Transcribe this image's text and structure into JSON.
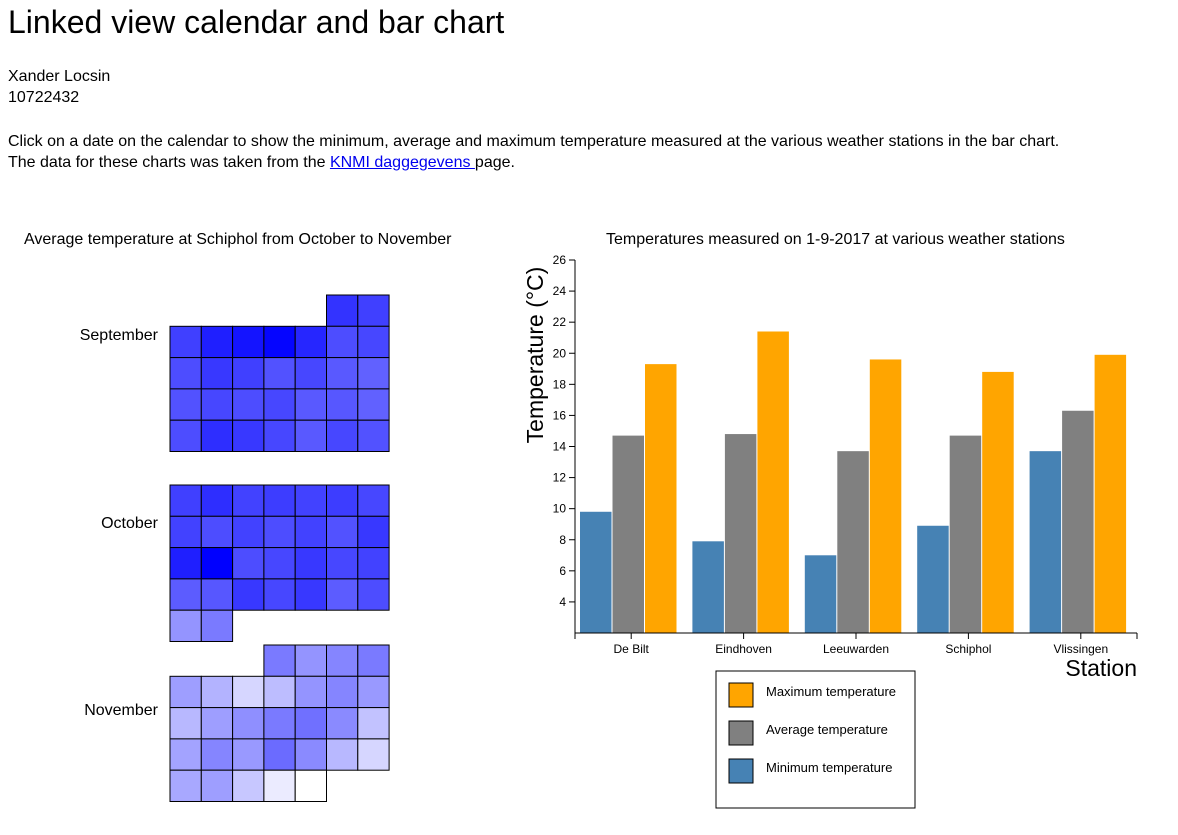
{
  "header": {
    "title": "Linked view calendar and bar chart",
    "author": "Xander Locsin",
    "student_id": "10722432",
    "intro_line1": "Click on a date on the calendar to show the minimum, average and maximum temperature measured at the various weather stations in the bar chart.",
    "intro_line2_before": "The data for these charts was taken from the ",
    "intro_link": "KNMI daggegevens ",
    "intro_line2_after": "page."
  },
  "calendar": {
    "title": "Average temperature at Schiphol from October to November",
    "months": [
      "September",
      "October",
      "November"
    ]
  },
  "colors": {
    "maximum": "#ffa500",
    "average": "#808080",
    "minimum": "#4682b4"
  },
  "chart_data": [
    {
      "type": "heatmap",
      "title": "Average temperature at Schiphol from October to November",
      "color_scale": [
        "#ffffff",
        "#0000ff"
      ],
      "months": [
        {
          "name": "September",
          "start_weekday": 5,
          "intensity": [
            0.8,
            0.75,
            0.75,
            0.88,
            0.92,
            0.98,
            0.85,
            0.7,
            0.72,
            0.7,
            0.78,
            0.75,
            0.68,
            0.72,
            0.65,
            0.62,
            0.68,
            0.72,
            0.7,
            0.72,
            0.65,
            0.66,
            0.62,
            0.7,
            0.82,
            0.78,
            0.72,
            0.65,
            0.72,
            0.68
          ]
        },
        {
          "name": "October",
          "start_weekday": 0,
          "intensity": [
            0.75,
            0.82,
            0.74,
            0.76,
            0.74,
            0.76,
            0.72,
            0.74,
            0.7,
            0.74,
            0.7,
            0.74,
            0.68,
            0.78,
            0.88,
            1.0,
            0.7,
            0.72,
            0.78,
            0.72,
            0.74,
            0.64,
            0.66,
            0.78,
            0.72,
            0.78,
            0.64,
            0.7,
            0.42,
            0.52
          ]
        },
        {
          "name": "November",
          "start_weekday": 3,
          "intensity": [
            0.52,
            0.42,
            0.48,
            0.52,
            0.38,
            0.3,
            0.16,
            0.26,
            0.42,
            0.48,
            0.4,
            0.28,
            0.38,
            0.44,
            0.52,
            0.56,
            0.46,
            0.24,
            0.36,
            0.48,
            0.4,
            0.58,
            0.46,
            0.28,
            0.16,
            0.34,
            0.38,
            0.22,
            0.08,
            0.0
          ]
        }
      ]
    },
    {
      "type": "bar",
      "title": "Temperatures measured on 1-9-2017 at various weather stations",
      "xlabel": "Station",
      "ylabel": "Temperature (°C)",
      "categories": [
        "De Bilt",
        "Eindhoven",
        "Leeuwarden",
        "Schiphol",
        "Vlissingen"
      ],
      "series": [
        {
          "name": "Minimum temperature",
          "values": [
            9.8,
            7.9,
            7.0,
            8.9,
            13.7
          ]
        },
        {
          "name": "Average temperature",
          "values": [
            14.7,
            14.8,
            13.7,
            14.7,
            16.3
          ]
        },
        {
          "name": "Maximum temperature",
          "values": [
            19.3,
            21.4,
            19.6,
            18.8,
            19.9
          ]
        }
      ],
      "ylim": [
        2,
        26
      ],
      "yticks": [
        4,
        6,
        8,
        10,
        12,
        14,
        16,
        18,
        20,
        22,
        24,
        26
      ],
      "legend": [
        "Maximum temperature",
        "Average temperature",
        "Minimum temperature"
      ],
      "legend_position": "bottom-center"
    }
  ]
}
